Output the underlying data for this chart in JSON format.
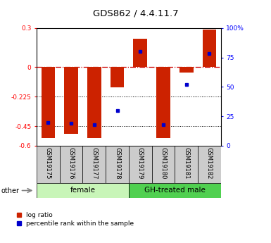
{
  "title": "GDS862 / 4.4.11.7",
  "samples": [
    "GSM19175",
    "GSM19176",
    "GSM19177",
    "GSM19178",
    "GSM19179",
    "GSM19180",
    "GSM19181",
    "GSM19182"
  ],
  "log_ratio": [
    -0.54,
    -0.51,
    -0.54,
    -0.155,
    0.22,
    -0.54,
    -0.04,
    0.285
  ],
  "percentile_rank": [
    20,
    19,
    18,
    30,
    80,
    18,
    52,
    78
  ],
  "group_defs": [
    {
      "label": "female",
      "xstart": 0,
      "xend": 4,
      "color": "#c8f0b0"
    },
    {
      "label": "GH-treated male",
      "xstart": 4,
      "xend": 8,
      "color": "#50d050"
    }
  ],
  "ylim_left": [
    -0.6,
    0.3
  ],
  "ylim_right": [
    0,
    100
  ],
  "yticks_left": [
    0.3,
    0.0,
    -0.225,
    -0.45,
    -0.6
  ],
  "yticks_left_labels": [
    "0.3",
    "0",
    "-0.225",
    "-0.45",
    "-0.6"
  ],
  "yticks_right": [
    100,
    75,
    50,
    25,
    0
  ],
  "yticks_right_labels": [
    "100%",
    "75",
    "50",
    "25",
    "0"
  ],
  "bar_color": "#cc2200",
  "dot_color": "#0000cc",
  "legend_log_ratio": "log ratio",
  "legend_percentile": "percentile rank within the sample",
  "other_label": "other"
}
